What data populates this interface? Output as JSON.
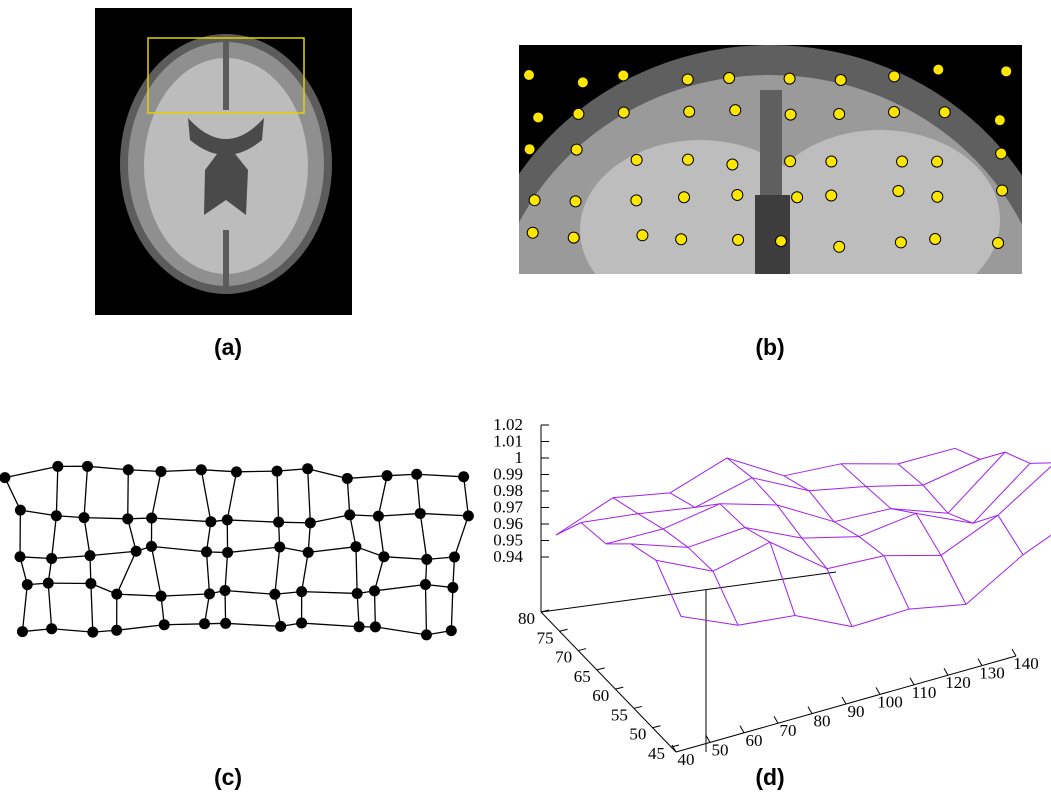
{
  "panels": [
    {
      "label": "(a)"
    },
    {
      "label": "(b)"
    },
    {
      "label": "(c)"
    },
    {
      "label": "(d)",
      "z_ticks": [
        1.02,
        1.01,
        1,
        0.99,
        0.98,
        0.97,
        0.96,
        0.95,
        0.94
      ],
      "y_ticks": [
        80,
        75,
        70,
        65,
        60,
        55,
        50,
        45
      ],
      "x_ticks": [
        40,
        50,
        60,
        70,
        80,
        90,
        100,
        110,
        120,
        130,
        140
      ]
    }
  ]
}
